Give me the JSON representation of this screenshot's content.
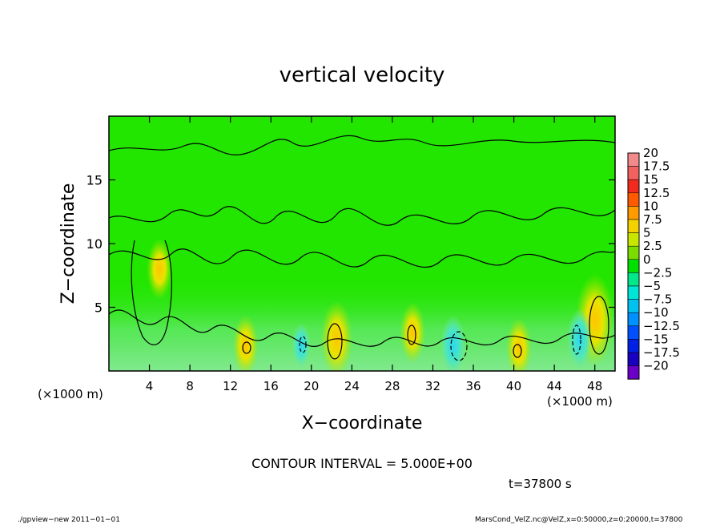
{
  "chart_data": {
    "type": "heatmap",
    "title": "vertical velocity",
    "xlabel": "X−coordinate",
    "ylabel": "Z−coordinate",
    "x_unit_left": "(×1000 m)",
    "x_unit_right": "(×1000 m)",
    "xlim": [
      0,
      50
    ],
    "ylim": [
      0,
      20
    ],
    "x_ticks": [
      4,
      8,
      12,
      16,
      20,
      24,
      28,
      32,
      36,
      40,
      44,
      48
    ],
    "x_tick_labels": [
      "4",
      "8",
      "12",
      "16",
      "20",
      "24",
      "28",
      "32",
      "36",
      "40",
      "44",
      "48"
    ],
    "y_ticks": [
      5,
      10,
      15
    ],
    "y_tick_labels": [
      "5",
      "10",
      "15"
    ],
    "colorbar_labels": [
      "20",
      "17.5",
      "15",
      "12.5",
      "10",
      "7.5",
      "5",
      "2.5",
      "0",
      "−2.5",
      "−5",
      "−7.5",
      "−10",
      "−12.5",
      "−15",
      "−17.5",
      "−20"
    ],
    "colorbar_colors": [
      "#f28a8a",
      "#f26060",
      "#f22a1e",
      "#ff5a00",
      "#ff9a00",
      "#f4d200",
      "#c8e600",
      "#7cdc00",
      "#00e000",
      "#00e88a",
      "#00e6d6",
      "#00c2f0",
      "#0090ff",
      "#0050ff",
      "#0020e6",
      "#1a00bf",
      "#6a00c8"
    ],
    "features": [
      {
        "x": 48,
        "z": 4,
        "value": 10
      },
      {
        "x": 22.5,
        "z": 2.5,
        "value": 7.5
      },
      {
        "x": 30,
        "z": 3,
        "value": 5
      },
      {
        "x": 13.5,
        "z": 2,
        "value": 5
      },
      {
        "x": 40.5,
        "z": 1.8,
        "value": 5
      },
      {
        "x": 5,
        "z": 8,
        "value": 5
      },
      {
        "x": 34,
        "z": 2,
        "value": -5
      },
      {
        "x": 46.5,
        "z": 2.5,
        "value": -5
      },
      {
        "x": 19,
        "z": 2,
        "value": -2.5
      }
    ],
    "contour_interval_text": "CONTOUR INTERVAL = 5.000E+00",
    "time_text": "t=37800 s"
  },
  "footer": {
    "left": "./gpview−new   2011−01−01",
    "right": "MarsCond_VelZ.nc@VelZ,x=0:50000,z=0:20000,t=37800"
  },
  "colors": {
    "field_base": "#22e600",
    "lower_layer": "#7ee87a",
    "axis": "#000000"
  }
}
